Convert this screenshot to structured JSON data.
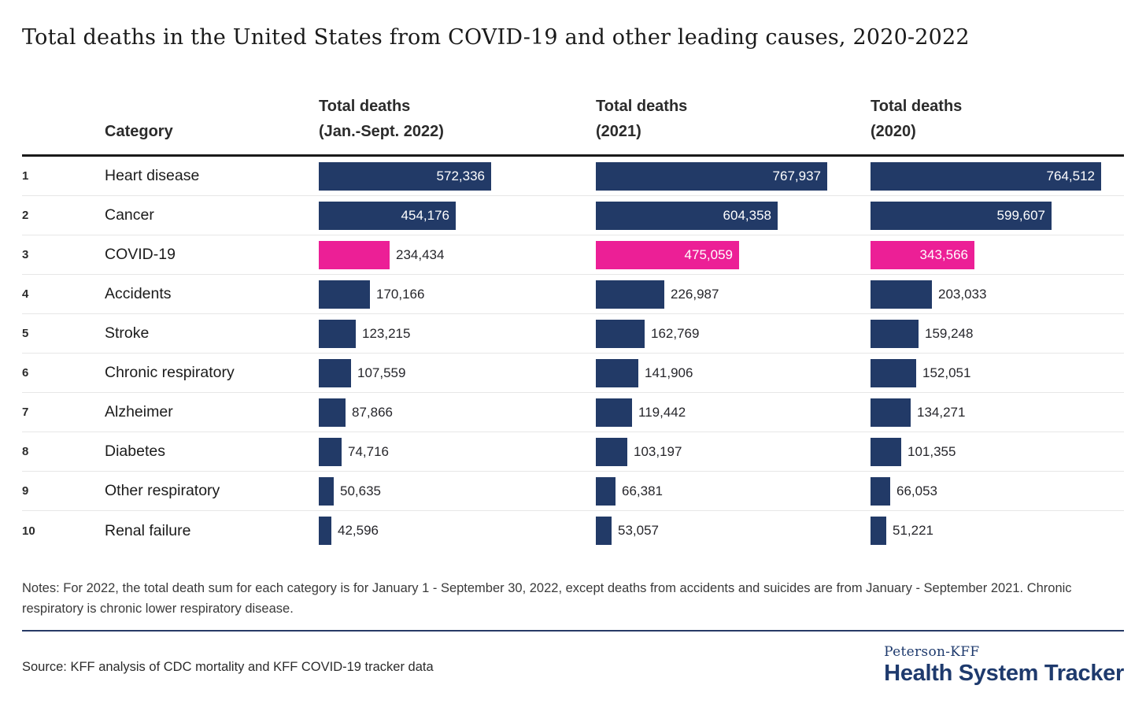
{
  "title": "Total deaths in the United States from COVID-19 and other leading causes, 2020-2022",
  "colors": {
    "bar_navy": "#223a67",
    "bar_pink": "#ec1f96",
    "divider_navy": "#273a66",
    "logo_navy": "#1e3a6d"
  },
  "table": {
    "category_header": "Category",
    "ranks": [
      "1",
      "2",
      "3",
      "4",
      "5",
      "6",
      "7",
      "8",
      "9",
      "10"
    ],
    "columns": [
      {
        "line1": "Total deaths",
        "line2": "(Jan.-Sept. 2022)"
      },
      {
        "line1": "Total deaths",
        "line2": "(2021)"
      },
      {
        "line1": "Total deaths",
        "line2": "(2020)"
      }
    ]
  },
  "chart_data": {
    "type": "bar",
    "orientation": "horizontal",
    "title": "Total deaths in the United States from COVID-19 and other leading causes, 2020-2022",
    "categories": [
      "Heart disease",
      "Cancer",
      "COVID-19",
      "Accidents",
      "Stroke",
      "Chronic respiratory",
      "Alzheimer",
      "Diabetes",
      "Other respiratory",
      "Renal failure"
    ],
    "series": [
      {
        "name": "Total deaths (Jan.-Sept. 2022)",
        "values": [
          572336,
          454176,
          234434,
          170166,
          123215,
          107559,
          87866,
          74716,
          50635,
          42596
        ]
      },
      {
        "name": "Total deaths (2021)",
        "values": [
          767937,
          604358,
          475059,
          226987,
          162769,
          141906,
          119442,
          103197,
          66381,
          53057
        ]
      },
      {
        "name": "Total deaths (2020)",
        "values": [
          764512,
          599607,
          343566,
          203033,
          159248,
          152051,
          134271,
          101355,
          66053,
          51221
        ]
      }
    ],
    "highlight_category": "COVID-19",
    "xlim": [
      0,
      767937
    ],
    "grid": false,
    "legend_position": "none",
    "value_labels": true
  },
  "notes": "Notes: For 2022, the total death sum for each category is for January 1 - September 30, 2022, except deaths from accidents and suicides are from January - September 2021. Chronic respiratory is chronic lower respiratory disease.",
  "source": "Source: KFF analysis of CDC mortality and KFF COVID-19 tracker data",
  "logo": {
    "top": "Peterson-KFF",
    "bottom": "Health System Tracker"
  }
}
